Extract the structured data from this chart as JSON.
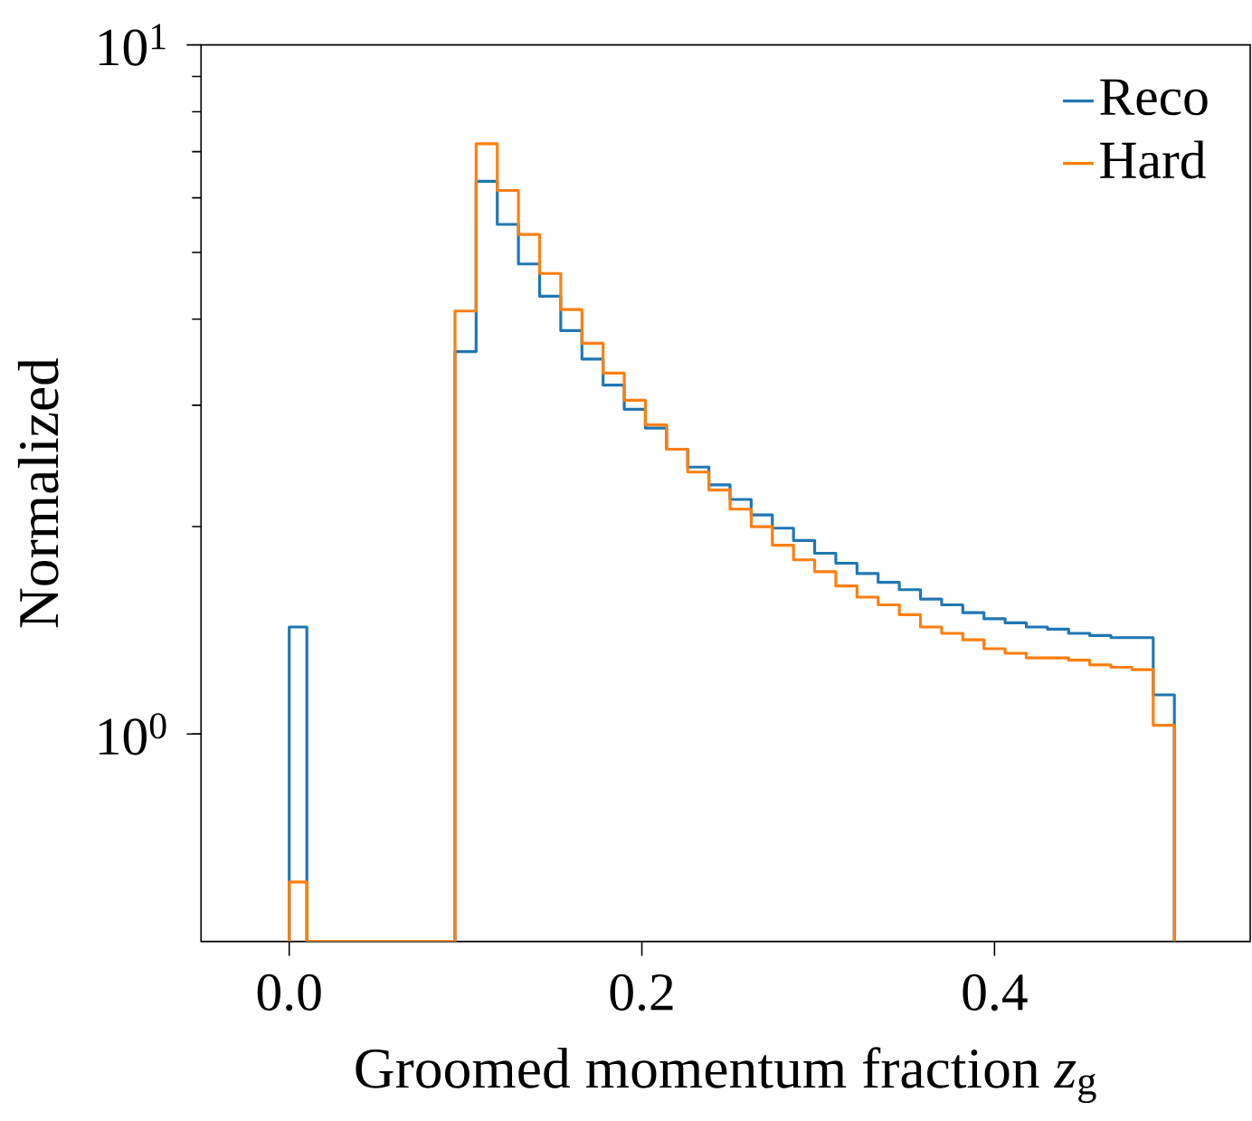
{
  "chart_data": {
    "type": "histogram",
    "xlabel": "Groomed momentum fraction *z*$_{g}$",
    "ylabel": "Normalized",
    "bins": [
      0,
      0.01,
      0.094,
      0.106,
      0.118,
      0.13,
      0.142,
      0.154,
      0.166,
      0.178,
      0.19,
      0.202,
      0.214,
      0.226,
      0.238,
      0.25,
      0.262,
      0.274,
      0.286,
      0.298,
      0.31,
      0.322,
      0.334,
      0.346,
      0.358,
      0.37,
      0.382,
      0.394,
      0.406,
      0.418,
      0.43,
      0.442,
      0.454,
      0.466,
      0.478,
      0.49,
      0.502
    ],
    "series": [
      {
        "name": "Reco",
        "color": "#1f77b4",
        "values": [
          1.43,
          null,
          3.59,
          6.34,
          5.49,
          4.81,
          4.32,
          3.85,
          3.5,
          3.21,
          2.96,
          2.78,
          2.59,
          2.44,
          2.3,
          2.19,
          2.08,
          1.99,
          1.91,
          1.83,
          1.77,
          1.71,
          1.66,
          1.62,
          1.57,
          1.54,
          1.5,
          1.47,
          1.45,
          1.43,
          1.42,
          1.4,
          1.39,
          1.38,
          1.38,
          1.14
        ]
      },
      {
        "name": "Hard",
        "color": "#ff7f0e",
        "values": [
          0.61,
          null,
          4.11,
          7.19,
          6.15,
          5.31,
          4.66,
          4.13,
          3.69,
          3.34,
          3.05,
          2.81,
          2.59,
          2.4,
          2.26,
          2.12,
          2.0,
          1.88,
          1.79,
          1.72,
          1.64,
          1.58,
          1.54,
          1.49,
          1.43,
          1.4,
          1.37,
          1.33,
          1.31,
          1.29,
          1.29,
          1.28,
          1.26,
          1.25,
          1.24,
          1.03
        ]
      }
    ],
    "xlim": [
      -0.05,
      0.545
    ],
    "ylim": [
      0.5,
      10
    ],
    "log": "y",
    "xticks": [
      {
        "value": 0,
        "label": "0.0"
      },
      0.2,
      0.4
    ],
    "yticks": [
      {
        "value": 1,
        "label": "10$^{0}$"
      },
      {
        "value": 10,
        "label": "10$^{1}$"
      }
    ],
    "grid": false,
    "legend": "top right"
  }
}
